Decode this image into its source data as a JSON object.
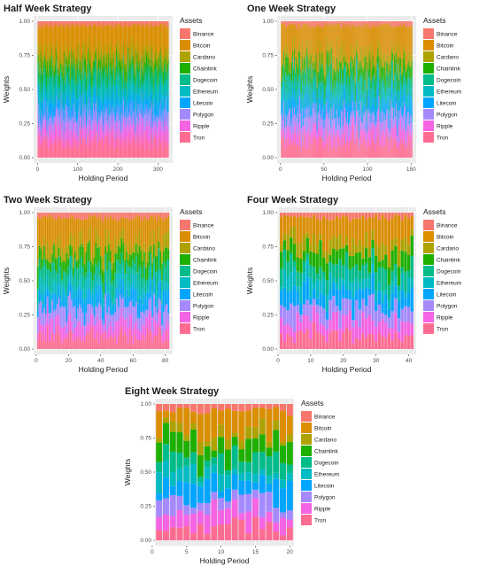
{
  "assets": [
    {
      "name": "Binance",
      "color": "#F8766D"
    },
    {
      "name": "Bitcoin",
      "color": "#DB8E00"
    },
    {
      "name": "Cardano",
      "color": "#AEA200"
    },
    {
      "name": "Chainlink",
      "color": "#1EB000"
    },
    {
      "name": "Dogecoin",
      "color": "#00BB8A"
    },
    {
      "name": "Ethereum",
      "color": "#00BBC3"
    },
    {
      "name": "Litecoin",
      "color": "#00A5FF"
    },
    {
      "name": "Polygon",
      "color": "#A58AFF"
    },
    {
      "name": "Ripple",
      "color": "#F564E3"
    },
    {
      "name": "Tron",
      "color": "#FF6C91"
    }
  ],
  "chart_data": [
    {
      "type": "bar",
      "stacked": true,
      "title": "Half Week Strategy",
      "xlabel": "Holding Period",
      "ylabel": "Weights",
      "legend_title": "Assets",
      "legend_position": "right",
      "xlim": [
        1,
        326
      ],
      "ylim": [
        0,
        1
      ],
      "xticks": [
        0,
        100,
        200,
        300
      ],
      "yticks": [
        "0.00",
        "0.25",
        "0.50",
        "0.75",
        "1.00"
      ],
      "periods": 326,
      "mean_weights": [
        0.03,
        0.2,
        0.08,
        0.08,
        0.1,
        0.09,
        0.1,
        0.1,
        0.1,
        0.12
      ]
    },
    {
      "type": "bar",
      "stacked": true,
      "title": "One Week Strategy",
      "xlabel": "Holding Period",
      "ylabel": "Weights",
      "legend_title": "Assets",
      "legend_position": "right",
      "xlim": [
        1,
        151
      ],
      "ylim": [
        0,
        1
      ],
      "xticks": [
        0,
        50,
        100,
        150
      ],
      "yticks": [
        "0.00",
        "0.25",
        "0.50",
        "0.75",
        "1.00"
      ],
      "periods": 151,
      "mean_weights": [
        0.03,
        0.21,
        0.08,
        0.09,
        0.09,
        0.09,
        0.1,
        0.1,
        0.09,
        0.12
      ]
    },
    {
      "type": "bar",
      "stacked": true,
      "title": "Two Week Strategy",
      "xlabel": "Holding Period",
      "ylabel": "Weights",
      "legend_title": "Assets",
      "legend_position": "right",
      "xlim": [
        1,
        82
      ],
      "ylim": [
        0,
        1
      ],
      "xticks": [
        0,
        20,
        40,
        60,
        80
      ],
      "yticks": [
        "0.00",
        "0.25",
        "0.50",
        "0.75",
        "1.00"
      ],
      "periods": 82,
      "mean_weights": [
        0.04,
        0.18,
        0.08,
        0.1,
        0.1,
        0.09,
        0.1,
        0.11,
        0.1,
        0.1
      ]
    },
    {
      "type": "bar",
      "stacked": true,
      "title": "Four Week Strategy",
      "xlabel": "Holding Period",
      "ylabel": "Weights",
      "legend_title": "Assets",
      "legend_position": "right",
      "xlim": [
        1,
        41
      ],
      "ylim": [
        0,
        1
      ],
      "xticks": [
        0,
        10,
        20,
        30,
        40
      ],
      "yticks": [
        "0.00",
        "0.25",
        "0.50",
        "0.75",
        "1.00"
      ],
      "periods": 41,
      "mean_weights": [
        0.04,
        0.18,
        0.08,
        0.1,
        0.1,
        0.09,
        0.11,
        0.1,
        0.1,
        0.1
      ]
    },
    {
      "type": "bar",
      "stacked": true,
      "title": "Eight Week Strategy",
      "xlabel": "Holding Period",
      "ylabel": "Weights",
      "legend_title": "Assets",
      "legend_position": "right",
      "xlim": [
        1,
        20
      ],
      "ylim": [
        0,
        1
      ],
      "xticks": [
        0,
        5,
        10,
        15,
        20
      ],
      "yticks": [
        "0.00",
        "0.25",
        "0.50",
        "0.75",
        "1.00"
      ],
      "periods": 20,
      "mean_weights": [
        0.05,
        0.16,
        0.07,
        0.11,
        0.1,
        0.09,
        0.12,
        0.1,
        0.1,
        0.1
      ]
    }
  ]
}
